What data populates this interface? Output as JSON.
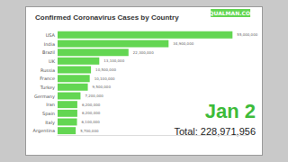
{
  "chart_data": {
    "type": "bar",
    "title": "Confirmed Coronavirus Cases by Country",
    "orientation": "horizontal",
    "categories": [
      "USA",
      "India",
      "Brazil",
      "UK",
      "Russia",
      "France",
      "Turkey",
      "Germany",
      "Iran",
      "Spain",
      "Italy",
      "Argentina"
    ],
    "values": [
      55000000,
      34900000,
      22300000,
      13100000,
      10500000,
      10100000,
      9500000,
      7200000,
      6200000,
      6200000,
      6100000,
      5700000
    ],
    "value_labels": [
      "55,000,000",
      "34,900,000",
      "22,300,000",
      "13,100,000",
      "10,500,000",
      "10,100,000",
      "9,500,000",
      "7,200,000",
      "6,200,000",
      "6,200,000",
      "6,100,000",
      "5,700,000"
    ],
    "data_labels": true,
    "color": "#63d652",
    "xlim": [
      0,
      60000000
    ],
    "grid": false,
    "tick_labels": "y",
    "annotations": [
      "EQUALMAN.COM",
      "Jan 2",
      "Total: 228,971,956"
    ]
  }
}
